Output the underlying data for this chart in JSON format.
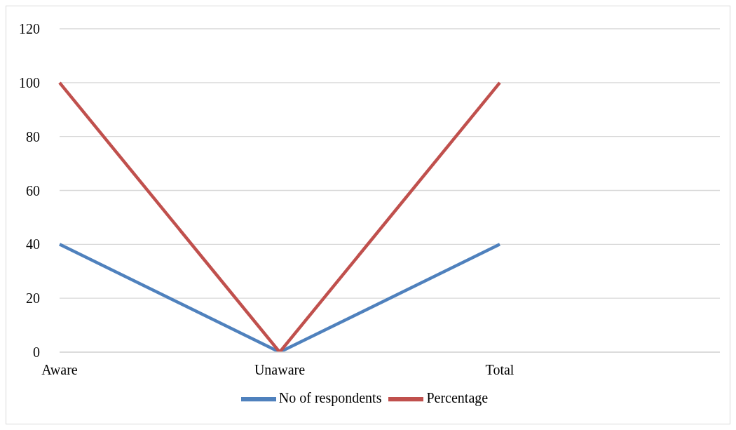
{
  "chart_data": {
    "type": "line",
    "categories": [
      "Aware",
      "Unaware",
      "Total",
      null
    ],
    "series": [
      {
        "name": "No of respondents",
        "color": "#4f81bd",
        "values": [
          40,
          0,
          40,
          null
        ]
      },
      {
        "name": "Percentage",
        "color": "#c0504d",
        "values": [
          100,
          0,
          100,
          null
        ]
      }
    ],
    "ylim": [
      0,
      120
    ],
    "yticks": [
      0,
      20,
      40,
      60,
      80,
      100,
      120
    ],
    "grid": "y",
    "legend": "bottom",
    "marker": "none",
    "line_style": "solid"
  }
}
